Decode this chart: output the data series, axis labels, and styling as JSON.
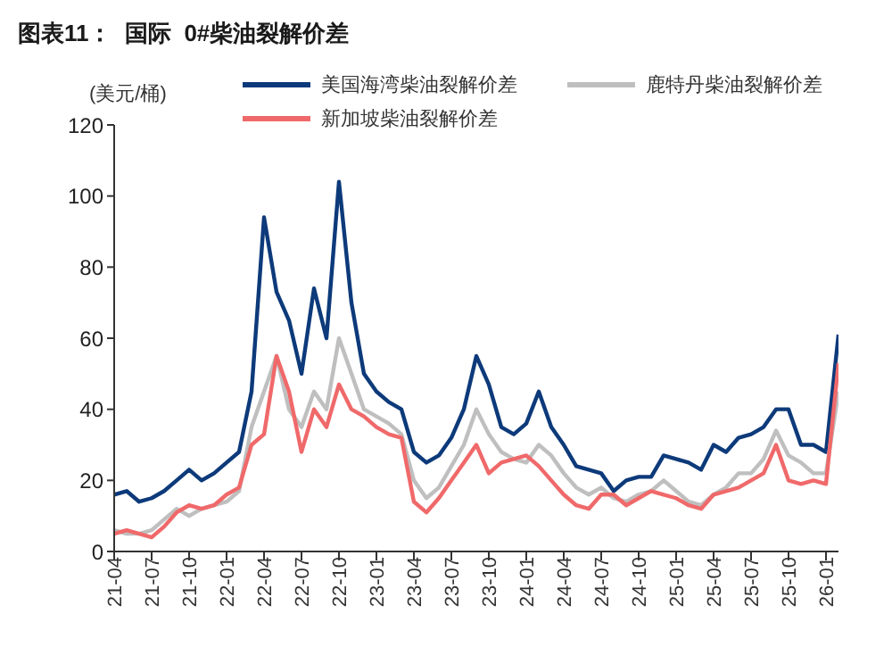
{
  "chart_data": {
    "type": "line",
    "title": "图表11：  国际  0#柴油裂解价差",
    "ylabel": "(美元/桶)",
    "categories": [
      "21-04",
      null,
      null,
      "21-07",
      null,
      null,
      "21-10",
      null,
      null,
      "22-01",
      null,
      null,
      "22-04",
      null,
      null,
      "22-07",
      null,
      null,
      "22-10",
      null,
      null,
      "23-01",
      null,
      null,
      "23-04",
      null,
      null,
      "23-07",
      null,
      null,
      "23-10",
      null,
      null,
      "24-01",
      null,
      null,
      "24-04",
      null,
      null,
      "24-07",
      null,
      null,
      "24-10",
      null,
      null,
      "25-01",
      null,
      null,
      "25-04",
      null,
      null,
      "25-07",
      null,
      null,
      "25-10",
      null,
      null,
      "26-01",
      null
    ],
    "series": [
      {
        "name": "美国海湾柴油裂解价差",
        "color": "#0d3a7a",
        "values": [
          16,
          17,
          14,
          15,
          17,
          20,
          23,
          20,
          22,
          25,
          28,
          45,
          94,
          73,
          65,
          50,
          74,
          60,
          104,
          70,
          50,
          45,
          42,
          40,
          28,
          25,
          27,
          32,
          40,
          55,
          47,
          35,
          33,
          36,
          45,
          35,
          30,
          24,
          23,
          22,
          17,
          20,
          21,
          21,
          27,
          26,
          25,
          23,
          30,
          28,
          32,
          33,
          35,
          40,
          40,
          30,
          30,
          28,
          61
        ]
      },
      {
        "name": "鹿特丹柴油裂解价差",
        "color": "#bfbfbf",
        "values": [
          6,
          5,
          5,
          6,
          9,
          12,
          10,
          12,
          13,
          14,
          17,
          35,
          45,
          55,
          40,
          35,
          45,
          40,
          60,
          50,
          40,
          38,
          36,
          33,
          20,
          15,
          18,
          24,
          30,
          40,
          33,
          28,
          26,
          25,
          30,
          27,
          22,
          18,
          16,
          18,
          15,
          14,
          16,
          17,
          20,
          17,
          14,
          13,
          16,
          18,
          22,
          22,
          26,
          34,
          27,
          25,
          22,
          22,
          45
        ]
      },
      {
        "name": "新加坡柴油裂解价差",
        "color": "#f0696a",
        "values": [
          5,
          6,
          5,
          4,
          7,
          11,
          13,
          12,
          13,
          16,
          18,
          30,
          33,
          55,
          45,
          28,
          40,
          35,
          47,
          40,
          38,
          35,
          33,
          32,
          14,
          11,
          15,
          20,
          25,
          30,
          22,
          25,
          26,
          27,
          24,
          20,
          16,
          13,
          12,
          16,
          16,
          13,
          15,
          17,
          16,
          15,
          13,
          12,
          16,
          17,
          18,
          20,
          22,
          30,
          20,
          19,
          20,
          19,
          53
        ]
      }
    ],
    "ylim": [
      0,
      120
    ],
    "yticks": [
      0,
      20,
      40,
      60,
      80,
      100,
      120
    ],
    "grid": false,
    "legend": "top",
    "marker": "none",
    "line_style": "solid"
  }
}
